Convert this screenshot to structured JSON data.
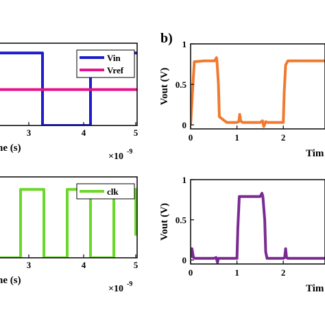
{
  "panel_label_b": "b)",
  "chart_data": [
    {
      "type": "line",
      "panel": "top-left",
      "xlabel": "Time (s)",
      "x_multiplier": "×10",
      "x_exponent": "-9",
      "xticks": [
        "3",
        "4",
        "5"
      ],
      "xlim": [
        0,
        5e-09
      ],
      "ylim": [
        0,
        1.1
      ],
      "legend_position": "top-right",
      "series": [
        {
          "name": "Vin",
          "color": "#1c1cc8",
          "x": [
            0,
            2.97e-09,
            2.97e-09,
            4e-09,
            4e-09,
            5e-09
          ],
          "y": [
            0.97,
            0.97,
            0,
            0,
            0.97,
            0.97
          ]
        },
        {
          "name": "Vref",
          "color": "#e6128a",
          "x": [
            0,
            5e-09
          ],
          "y": [
            0.48,
            0.48
          ]
        }
      ]
    },
    {
      "type": "line",
      "panel": "bottom-left",
      "xlabel": "Time (s)",
      "x_multiplier": "×10",
      "x_exponent": "-9",
      "xticks": [
        "3",
        "4",
        "5"
      ],
      "xlim": [
        0,
        5e-09
      ],
      "ylim": [
        0,
        1.1
      ],
      "legend_position": "top-right",
      "series": [
        {
          "name": "clk",
          "color": "#6ad82a",
          "x": [
            0,
            2e-09,
            2e-09,
            2.5e-09,
            2.5e-09,
            3e-09,
            3e-09,
            3.5e-09,
            3.5e-09,
            4e-09,
            4e-09,
            4.5e-09,
            4.5e-09,
            4.97e-09,
            4.97e-09
          ],
          "y": [
            0.93,
            0.93,
            0,
            0,
            0.93,
            0.93,
            0,
            0,
            0.93,
            0.93,
            0,
            0,
            0.93,
            0.93,
            0.3
          ]
        }
      ]
    },
    {
      "type": "line",
      "panel": "top-right",
      "ylabel": "Vout (V)",
      "xlabel": "Tim",
      "xticks": [
        "0",
        "1",
        "2"
      ],
      "yticks": [
        "0",
        "0.5",
        "1"
      ],
      "xlim": [
        0,
        2.9
      ],
      "ylim": [
        -0.05,
        1.0
      ],
      "series": [
        {
          "name": "",
          "color": "#f07a2e",
          "x": [
            0,
            0.05,
            0.08,
            0.3,
            0.52,
            0.56,
            0.57,
            0.6,
            0.62,
            0.78,
            1.0,
            1.04,
            1.06,
            1.08,
            1.12,
            1.5,
            1.55,
            1.58,
            1.62,
            1.66,
            2.0,
            2.02,
            2.05,
            2.1,
            2.9
          ],
          "y": [
            0.0,
            0.5,
            0.78,
            0.79,
            0.79,
            0.83,
            0.78,
            0.5,
            0.1,
            0.03,
            0.03,
            0.04,
            0.13,
            0.05,
            0.03,
            0.03,
            0.05,
            -0.02,
            0.04,
            0.03,
            0.03,
            0.4,
            0.74,
            0.79,
            0.79
          ]
        }
      ]
    },
    {
      "type": "line",
      "panel": "bottom-right",
      "ylabel": "Vout (V)",
      "xlabel": "Tim",
      "xticks": [
        "0",
        "1",
        "2"
      ],
      "yticks": [
        "0",
        "0.5",
        "1"
      ],
      "xlim": [
        0,
        2.9
      ],
      "ylim": [
        -0.05,
        1.0
      ],
      "series": [
        {
          "name": "",
          "color": "#7b2a92",
          "x": [
            0,
            0.03,
            0.06,
            0.1,
            0.5,
            0.55,
            0.58,
            0.6,
            1.0,
            1.02,
            1.05,
            1.1,
            1.5,
            1.54,
            1.56,
            1.6,
            1.62,
            1.65,
            2.0,
            2.03,
            2.05,
            2.07,
            2.1,
            2.9
          ],
          "y": [
            0.03,
            0.14,
            0.03,
            0.02,
            0.02,
            0.03,
            -0.03,
            0.02,
            0.02,
            0.4,
            0.79,
            0.79,
            0.79,
            0.83,
            0.79,
            0.5,
            0.1,
            0.02,
            0.02,
            0.03,
            0.14,
            0.03,
            0.02,
            0.02
          ]
        }
      ]
    }
  ]
}
